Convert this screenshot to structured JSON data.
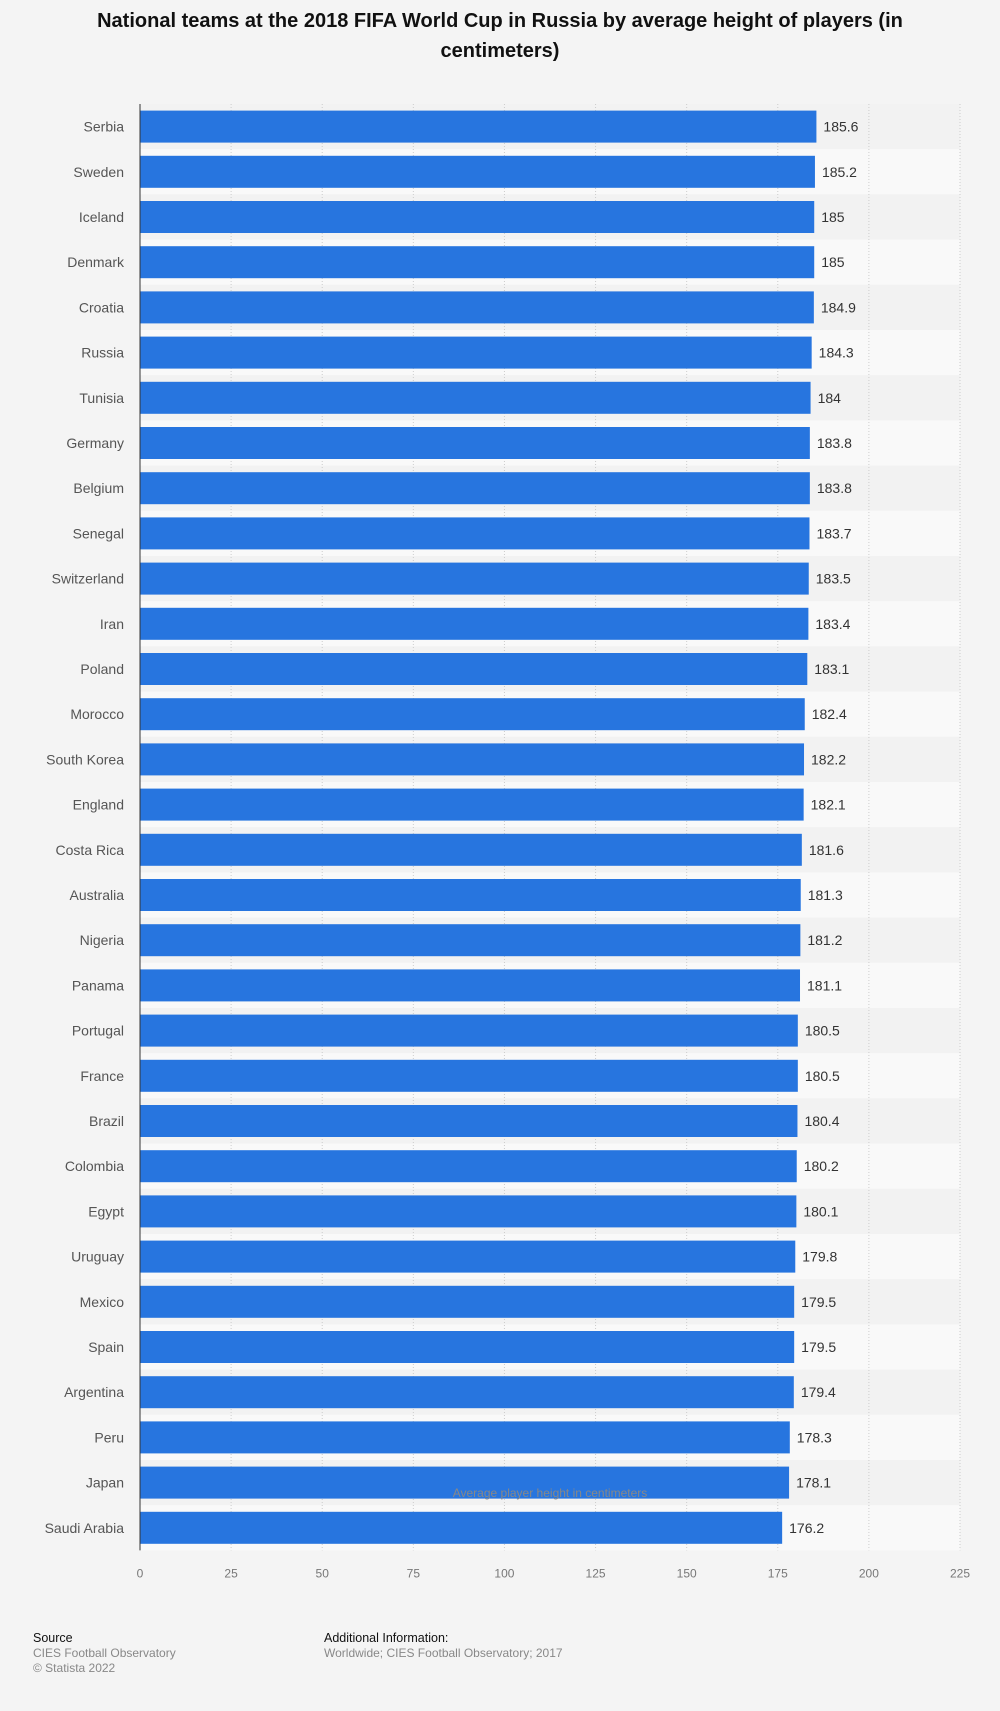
{
  "chart_data": {
    "type": "bar",
    "orientation": "horizontal",
    "title": "National teams at the 2018 FIFA World Cup in Russia by average height of players (in centimeters)",
    "xlabel": "Average player height in centimeters",
    "ylabel": "",
    "xlim": [
      0,
      225
    ],
    "xticks": [
      0,
      25,
      50,
      75,
      100,
      125,
      150,
      175,
      200,
      225
    ],
    "grid": true,
    "legend": "none",
    "bar_color": "#2775df",
    "categories": [
      "Serbia",
      "Sweden",
      "Iceland",
      "Denmark",
      "Croatia",
      "Russia",
      "Tunisia",
      "Germany",
      "Belgium",
      "Senegal",
      "Switzerland",
      "Iran",
      "Poland",
      "Morocco",
      "South Korea",
      "England",
      "Costa Rica",
      "Australia",
      "Nigeria",
      "Panama",
      "Portugal",
      "France",
      "Brazil",
      "Colombia",
      "Egypt",
      "Uruguay",
      "Mexico",
      "Spain",
      "Argentina",
      "Peru",
      "Japan",
      "Saudi Arabia"
    ],
    "values": [
      185.6,
      185.2,
      185,
      185,
      184.9,
      184.3,
      184,
      183.8,
      183.8,
      183.7,
      183.5,
      183.4,
      183.1,
      182.4,
      182.2,
      182.1,
      181.6,
      181.3,
      181.2,
      181.1,
      180.5,
      180.5,
      180.4,
      180.2,
      180.1,
      179.8,
      179.5,
      179.5,
      179.4,
      178.3,
      178.1,
      176.2
    ]
  },
  "footer": {
    "source_heading": "Source",
    "source_lines": [
      "CIES Football Observatory",
      "© Statista 2022"
    ],
    "info_heading": "Additional Information:",
    "info_lines": [
      "Worldwide; CIES Football Observatory; 2017"
    ]
  }
}
